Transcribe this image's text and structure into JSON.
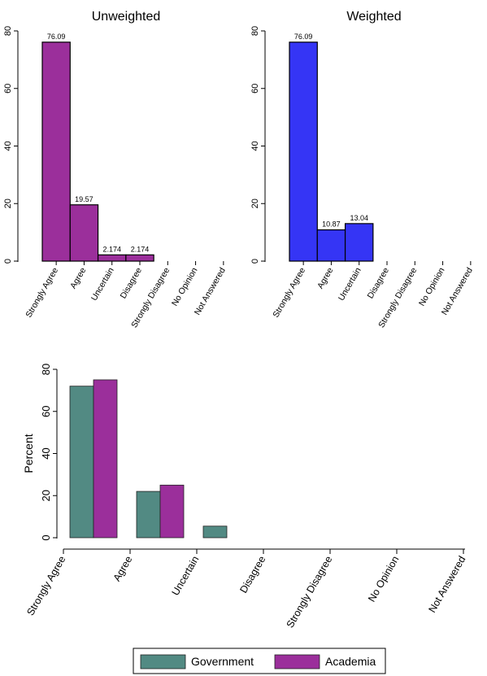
{
  "chart_data": [
    {
      "type": "bar",
      "title": "Unweighted",
      "categories": [
        "Strongly Agree",
        "Agree",
        "Uncertain",
        "Disagree",
        "Strongly Disagree",
        "No Opinion",
        "Not Answered"
      ],
      "values": [
        76.09,
        19.57,
        2.174,
        2.174,
        0,
        0,
        0
      ],
      "value_labels": [
        "76.09",
        "19.57",
        "2.174",
        "2.174",
        "",
        "",
        ""
      ],
      "ylim": [
        0,
        80
      ],
      "yticks": [
        "0",
        "20",
        "40",
        "60",
        "80"
      ],
      "xlabel": "",
      "ylabel": "",
      "color": "#9b2f9b",
      "grid": false
    },
    {
      "type": "bar",
      "title": "Weighted",
      "categories": [
        "Strongly Agree",
        "Agree",
        "Uncertain",
        "Disagree",
        "Strongly Disagree",
        "No Opinion",
        "Not Answered"
      ],
      "values": [
        76.09,
        10.87,
        13.04,
        0,
        0,
        0,
        0
      ],
      "value_labels": [
        "76.09",
        "10.87",
        "13.04",
        "",
        "",
        "",
        ""
      ],
      "ylim": [
        0,
        80
      ],
      "yticks": [
        "0",
        "20",
        "40",
        "60",
        "80"
      ],
      "xlabel": "",
      "ylabel": "",
      "color": "#3535f5",
      "grid": false
    },
    {
      "type": "bar",
      "title": "",
      "categories": [
        "Strongly Agree",
        "Agree",
        "Uncertain",
        "Disagree",
        "Strongly Disagree",
        "No Opinion",
        "Not Answered"
      ],
      "series": [
        {
          "name": "Government",
          "values": [
            72,
            22,
            5.5,
            0,
            0,
            0,
            0
          ],
          "color": "#528a83"
        },
        {
          "name": "Academia",
          "values": [
            75,
            25,
            0,
            0,
            0,
            0,
            0
          ],
          "color": "#9b2f9b"
        }
      ],
      "ylim": [
        0,
        80
      ],
      "yticks": [
        "0",
        "20",
        "40",
        "60",
        "80"
      ],
      "xlabel": "",
      "ylabel": "Percent",
      "legend": "bottom",
      "grid": false
    }
  ]
}
